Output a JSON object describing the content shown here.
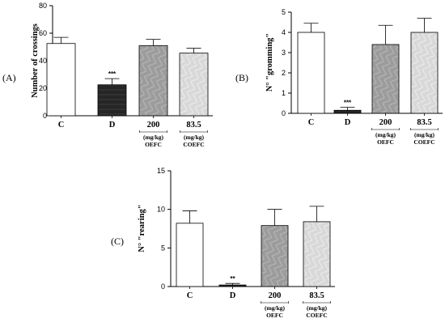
{
  "chart_data": [
    {
      "type": "bar",
      "panel": "(A)",
      "ylabel": "Number of crossings",
      "ylim": [
        0,
        80
      ],
      "yticks": [
        0,
        20,
        40,
        60,
        80
      ],
      "categories": [
        "C",
        "D",
        "200",
        "83.5"
      ],
      "group_labels": [
        "",
        "",
        "(mg/kg)\nOEFC",
        "(mg/kg)\nCOEFC"
      ],
      "values": [
        52.5,
        22.5,
        51,
        45.5
      ],
      "errors": [
        4.5,
        4.5,
        4.5,
        3.5
      ],
      "significance": [
        "",
        "***",
        "",
        ""
      ],
      "bar_colors": [
        "#ffffff",
        "#2a2a2a",
        "#9a9a9a",
        "#d6d6d6"
      ]
    },
    {
      "type": "bar",
      "panel": "(B)",
      "ylabel": "N° \"gromming\"",
      "ylim": [
        0,
        5
      ],
      "yticks": [
        0,
        1,
        2,
        3,
        4,
        5
      ],
      "categories": [
        "C",
        "D",
        "200",
        "83.5"
      ],
      "group_labels": [
        "",
        "",
        "(mg/kg)\nOEFC",
        "(mg/kg)\nCOEFC"
      ],
      "values": [
        4.0,
        0.15,
        3.4,
        4.0
      ],
      "errors": [
        0.45,
        0.15,
        0.95,
        0.7
      ],
      "significance": [
        "",
        "***",
        "",
        ""
      ],
      "bar_colors": [
        "#ffffff",
        "#2a2a2a",
        "#9a9a9a",
        "#d6d6d6"
      ]
    },
    {
      "type": "bar",
      "panel": "(C)",
      "ylabel": "N° \"rearing\"",
      "ylim": [
        0,
        15
      ],
      "yticks": [
        0,
        5,
        10,
        15
      ],
      "categories": [
        "C",
        "D",
        "200",
        "83.5"
      ],
      "group_labels": [
        "",
        "",
        "(mg/kg)\nOEFC",
        "(mg/kg)\nCOEFC"
      ],
      "values": [
        8.2,
        0.2,
        7.9,
        8.4
      ],
      "errors": [
        1.6,
        0.2,
        2.1,
        2.0
      ],
      "significance": [
        "",
        "**",
        "",
        ""
      ],
      "bar_colors": [
        "#ffffff",
        "#2a2a2a",
        "#9a9a9a",
        "#d6d6d6"
      ]
    }
  ]
}
